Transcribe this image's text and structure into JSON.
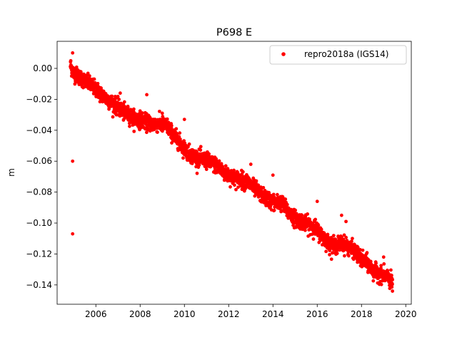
{
  "chart_data": {
    "type": "scatter",
    "title": "P698 E",
    "xlabel": "",
    "ylabel": "m",
    "xlim": [
      2004.25,
      2020.25
    ],
    "ylim": [
      -0.1525,
      0.0175
    ],
    "xticks": [
      2006,
      2008,
      2010,
      2012,
      2014,
      2016,
      2018,
      2020
    ],
    "xtick_labels": [
      "2006",
      "2008",
      "2010",
      "2012",
      "2014",
      "2016",
      "2018",
      "2020"
    ],
    "yticks": [
      0.0,
      -0.02,
      -0.04,
      -0.06,
      -0.08,
      -0.1,
      -0.12,
      -0.14
    ],
    "ytick_labels": [
      "0.00",
      "−0.02",
      "−0.04",
      "−0.06",
      "−0.08",
      "−0.10",
      "−0.12",
      "−0.14"
    ],
    "grid": false,
    "legend_position": "top-right",
    "series": [
      {
        "name": "repro2018a (IGS14)",
        "color": "#ff0000",
        "marker": "circle",
        "trend": [
          [
            2004.85,
            0.002
          ],
          [
            2005.0,
            -0.003
          ],
          [
            2005.3,
            -0.006
          ],
          [
            2005.6,
            -0.009
          ],
          [
            2005.9,
            -0.012
          ],
          [
            2006.2,
            -0.016
          ],
          [
            2006.5,
            -0.02
          ],
          [
            2006.8,
            -0.023
          ],
          [
            2007.0,
            -0.025
          ],
          [
            2007.2,
            -0.028
          ],
          [
            2007.5,
            -0.03
          ],
          [
            2007.8,
            -0.033
          ],
          [
            2008.0,
            -0.033
          ],
          [
            2008.3,
            -0.035
          ],
          [
            2008.6,
            -0.036
          ],
          [
            2008.9,
            -0.036
          ],
          [
            2009.2,
            -0.037
          ],
          [
            2009.5,
            -0.043
          ],
          [
            2009.8,
            -0.048
          ],
          [
            2010.0,
            -0.052
          ],
          [
            2010.3,
            -0.056
          ],
          [
            2010.6,
            -0.058
          ],
          [
            2010.9,
            -0.059
          ],
          [
            2011.2,
            -0.061
          ],
          [
            2011.5,
            -0.063
          ],
          [
            2011.8,
            -0.068
          ],
          [
            2012.0,
            -0.069
          ],
          [
            2012.3,
            -0.071
          ],
          [
            2012.6,
            -0.072
          ],
          [
            2012.9,
            -0.074
          ],
          [
            2013.2,
            -0.078
          ],
          [
            2013.5,
            -0.082
          ],
          [
            2013.8,
            -0.085
          ],
          [
            2014.1,
            -0.087
          ],
          [
            2014.4,
            -0.087
          ],
          [
            2014.7,
            -0.093
          ],
          [
            2015.0,
            -0.097
          ],
          [
            2015.3,
            -0.099
          ],
          [
            2015.6,
            -0.101
          ],
          [
            2015.9,
            -0.103
          ],
          [
            2016.2,
            -0.108
          ],
          [
            2016.5,
            -0.113
          ],
          [
            2016.8,
            -0.115
          ],
          [
            2017.1,
            -0.113
          ],
          [
            2017.4,
            -0.115
          ],
          [
            2017.7,
            -0.118
          ],
          [
            2018.0,
            -0.124
          ],
          [
            2018.3,
            -0.126
          ],
          [
            2018.5,
            -0.131
          ],
          [
            2018.8,
            -0.133
          ],
          [
            2019.1,
            -0.134
          ],
          [
            2019.4,
            -0.139
          ]
        ],
        "scatter_spread": 0.0025,
        "outliers": [
          [
            2004.95,
            -0.06
          ],
          [
            2004.95,
            -0.107
          ],
          [
            2004.95,
            0.01
          ],
          [
            2007.1,
            -0.016
          ],
          [
            2008.3,
            -0.017
          ],
          [
            2009.0,
            -0.029
          ],
          [
            2010.0,
            -0.033
          ],
          [
            2013.0,
            -0.062
          ],
          [
            2014.0,
            -0.069
          ],
          [
            2016.0,
            -0.086
          ],
          [
            2017.1,
            -0.095
          ],
          [
            2017.3,
            -0.099
          ],
          [
            2019.0,
            -0.122
          ],
          [
            2018.3,
            -0.131
          ],
          [
            2019.4,
            -0.144
          ]
        ]
      }
    ]
  }
}
